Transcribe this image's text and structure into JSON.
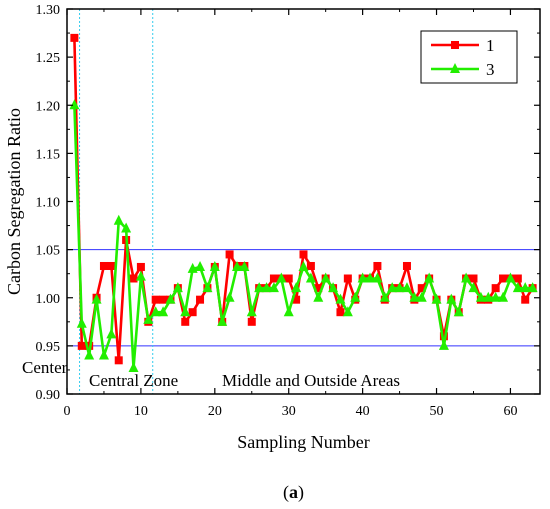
{
  "chart_data": {
    "type": "line",
    "xlabel": "Sampling Number",
    "ylabel": "Carbon Segregation Ratio",
    "xlim": [
      0,
      64
    ],
    "ylim": [
      0.9,
      1.3
    ],
    "xticks": [
      "0",
      "10",
      "20",
      "30",
      "40",
      "50",
      "60"
    ],
    "yticks": [
      "0.90",
      "0.95",
      "1.00",
      "1.05",
      "1.10",
      "1.15",
      "1.20",
      "1.25",
      "1.30"
    ],
    "grid": false,
    "legend_position": "top-right",
    "series": [
      {
        "name": "1",
        "color": "#ff0000",
        "marker": "square",
        "x": [
          1,
          2,
          3,
          4,
          5,
          6,
          7,
          8,
          9,
          10,
          11,
          12,
          13,
          14,
          15,
          16,
          17,
          18,
          19,
          20,
          21,
          22,
          23,
          24,
          25,
          26,
          27,
          28,
          29,
          30,
          31,
          32,
          33,
          34,
          35,
          36,
          37,
          38,
          39,
          40,
          41,
          42,
          43,
          44,
          45,
          46,
          47,
          48,
          49,
          50,
          51,
          52,
          53,
          54,
          55,
          56,
          57,
          58,
          59,
          60,
          61,
          62,
          63
        ],
        "values": [
          1.27,
          0.95,
          0.95,
          1.0,
          1.033,
          1.033,
          0.935,
          1.06,
          1.02,
          1.032,
          0.975,
          0.998,
          0.998,
          0.998,
          1.01,
          0.975,
          0.985,
          0.998,
          1.01,
          1.032,
          0.975,
          1.045,
          1.033,
          1.033,
          0.975,
          1.01,
          1.01,
          1.02,
          1.02,
          1.02,
          0.998,
          1.045,
          1.033,
          1.01,
          1.02,
          1.01,
          0.985,
          1.02,
          0.998,
          1.02,
          1.02,
          1.033,
          0.998,
          1.01,
          1.01,
          1.033,
          0.998,
          1.01,
          1.02,
          0.998,
          0.96,
          0.998,
          0.985,
          1.02,
          1.02,
          0.998,
          0.998,
          1.01,
          1.02,
          1.02,
          1.02,
          0.998,
          1.01
        ]
      },
      {
        "name": "3",
        "color": "#22ee00",
        "marker": "triangle",
        "x": [
          1,
          2,
          3,
          4,
          5,
          6,
          7,
          8,
          9,
          10,
          11,
          12,
          13,
          14,
          15,
          16,
          17,
          18,
          19,
          20,
          21,
          22,
          23,
          24,
          25,
          26,
          27,
          28,
          29,
          30,
          31,
          32,
          33,
          34,
          35,
          36,
          37,
          38,
          39,
          40,
          41,
          42,
          43,
          44,
          45,
          46,
          47,
          48,
          49,
          50,
          51,
          52,
          53,
          54,
          55,
          56,
          57,
          58,
          59,
          60,
          61,
          62,
          63
        ],
        "values": [
          1.2,
          0.973,
          0.94,
          0.998,
          0.94,
          0.962,
          1.08,
          1.072,
          0.927,
          1.022,
          0.977,
          0.985,
          0.985,
          0.998,
          1.01,
          0.985,
          1.03,
          1.032,
          1.01,
          1.032,
          0.975,
          1.0,
          1.032,
          1.032,
          0.985,
          1.01,
          1.01,
          1.01,
          1.02,
          0.985,
          1.01,
          1.032,
          1.02,
          1.0,
          1.02,
          1.01,
          0.998,
          0.985,
          1.0,
          1.02,
          1.02,
          1.02,
          1.0,
          1.01,
          1.01,
          1.01,
          1.0,
          1.0,
          1.02,
          0.998,
          0.95,
          0.998,
          0.985,
          1.02,
          1.01,
          1.0,
          1.0,
          1.0,
          1.0,
          1.02,
          1.01,
          1.01,
          1.01
        ]
      }
    ],
    "reference_lines": {
      "horizontal": [
        1.05,
        0.95
      ],
      "horizontal_color": "#3333ff",
      "vertical": [
        1.7,
        11.6
      ],
      "vertical_color": "#33ccee"
    },
    "annotations": {
      "center": "Center",
      "central_zone": "Central Zone",
      "outer": "Middle and Outside Areas"
    },
    "panel_label": "(a)"
  }
}
